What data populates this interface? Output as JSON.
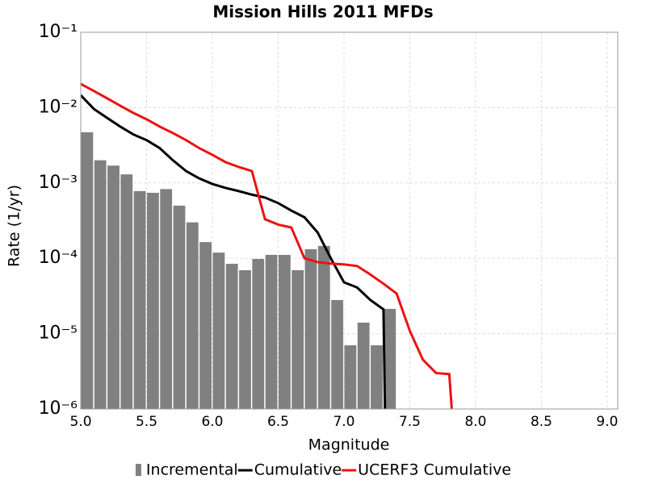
{
  "chart_data": {
    "type": "histogram",
    "title": "Mission Hills 2011 MFDs",
    "xlabel": "Magnitude",
    "ylabel": "Rate (1/yr)",
    "xlim": [
      5.0,
      9.08
    ],
    "ylim": [
      1e-06,
      0.1
    ],
    "log_y": true,
    "grid": true,
    "legend": "bottom",
    "xticks": [
      {
        "value": 5,
        "label": "5.0"
      },
      5.5,
      {
        "value": 6,
        "label": "6.0"
      },
      6.5,
      {
        "value": 7,
        "label": "7.0"
      },
      7.5,
      {
        "value": 8,
        "label": "8.0"
      },
      8.5,
      {
        "value": 9,
        "label": "9.0"
      }
    ],
    "yticks": [
      {
        "value": 1e-06,
        "label": "10⁻⁶"
      },
      {
        "value": 1e-05,
        "label": "10⁻⁵"
      },
      {
        "value": 0.0001,
        "label": "10⁻⁴"
      },
      {
        "value": 0.001,
        "label": "10⁻³"
      },
      {
        "value": 0.01,
        "label": "10⁻²"
      },
      {
        "value": 0.1,
        "label": "10⁻¹"
      }
    ],
    "bins": [
      5.0,
      5.1,
      5.2,
      5.3,
      5.4,
      5.5,
      5.6,
      5.7,
      5.8,
      5.9,
      6.0,
      6.1,
      6.2,
      6.3,
      6.4,
      6.5,
      6.6,
      6.7,
      6.8,
      6.9,
      7.0,
      7.1,
      7.2,
      7.3,
      7.4
    ],
    "series": [
      {
        "name": "Incremental",
        "type": "histogram",
        "color": "#808080",
        "values": [
          0.0047,
          0.002,
          0.0017,
          0.0013,
          0.00078,
          0.00074,
          0.00083,
          0.0005,
          0.0003,
          0.000164,
          0.000119,
          8.45e-05,
          6.95e-05,
          9.8e-05,
          0.000111,
          0.000111,
          6.95e-05,
          0.000132,
          0.000146,
          2.79e-05,
          7e-06,
          1.4e-05,
          7e-06,
          2.13e-05
        ]
      },
      {
        "name": "Cumulative",
        "type": "line",
        "color": "#000000",
        "x": [
          5.0,
          5.1,
          5.2,
          5.3,
          5.4,
          5.5,
          5.6,
          5.7,
          5.8,
          5.9,
          6.0,
          6.1,
          6.2,
          6.3,
          6.4,
          6.5,
          6.6,
          6.7,
          6.8,
          6.9,
          7.0,
          7.1,
          7.2,
          7.3,
          7.32
        ],
        "values": [
          0.0146,
          0.0096,
          0.0073,
          0.0056,
          0.0044,
          0.0037,
          0.0029,
          0.002,
          0.00144,
          0.00115,
          0.00097,
          0.00086,
          0.00078,
          0.0007,
          0.00064,
          0.00054,
          0.00043,
          0.00035,
          0.00022,
          0.0001,
          4.8e-05,
          4.1e-05,
          2.8e-05,
          2.1e-05,
          1e-07
        ]
      },
      {
        "name": "UCERF3 Cumulative",
        "type": "line",
        "color": "#ee1111",
        "x": [
          5.0,
          5.1,
          5.2,
          5.3,
          5.4,
          5.5,
          5.6,
          5.7,
          5.8,
          5.9,
          6.0,
          6.1,
          6.2,
          6.3,
          6.4,
          6.5,
          6.6,
          6.7,
          6.8,
          6.9,
          7.0,
          7.1,
          7.2,
          7.3,
          7.4,
          7.5,
          7.6,
          7.7,
          7.8,
          7.86
        ],
        "values": [
          0.0206,
          0.0166,
          0.0133,
          0.0106,
          0.0085,
          0.007,
          0.0056,
          0.0046,
          0.0037,
          0.0029,
          0.00236,
          0.00189,
          0.00163,
          0.00144,
          0.00033,
          0.00028,
          0.000256,
          0.0001,
          8.9e-05,
          8.5e-05,
          8.3e-05,
          7.9e-05,
          6.1e-05,
          4.6e-05,
          3.4e-05,
          1.09e-05,
          4.5e-06,
          3e-06,
          2.9e-06,
          1e-07
        ]
      }
    ]
  }
}
